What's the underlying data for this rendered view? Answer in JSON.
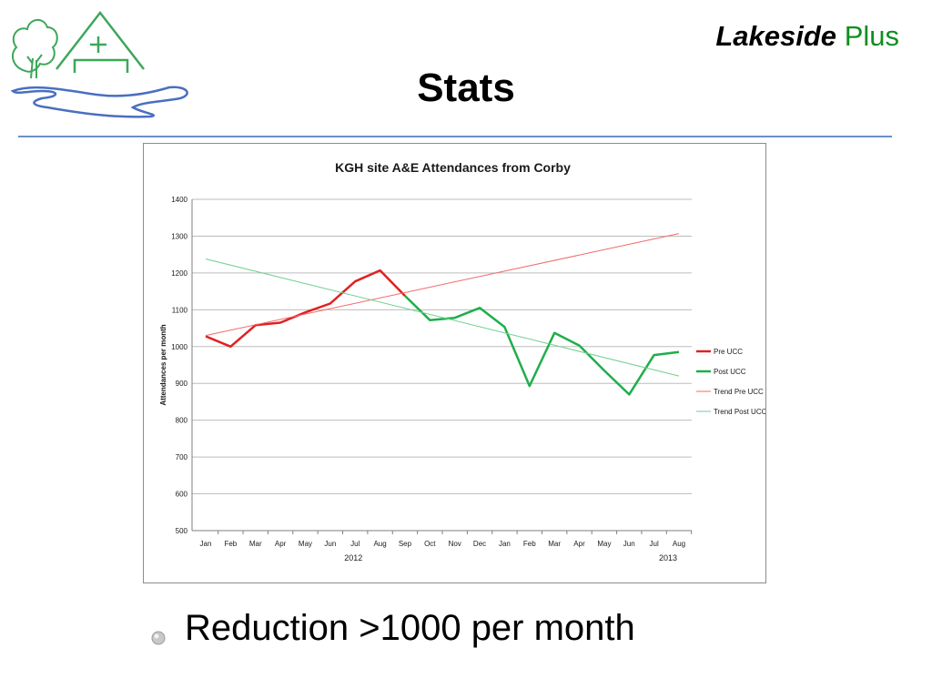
{
  "header": {
    "brand_primary": "Lakeside",
    "brand_secondary": "Plus",
    "title": "Stats",
    "colors": {
      "brand_green": "#0f8f1f",
      "rule_blue": "#6a8fc8",
      "logo_green": "#3da75a",
      "logo_blue": "#4a6fc0"
    }
  },
  "logo": {
    "icon": "lakeside-house-tree-logo"
  },
  "bullet": {
    "icon": "bullet-disc-icon",
    "text": "Reduction >1000 per month"
  },
  "chart_data": {
    "type": "line",
    "title": "KGH site A&E Attendances from Corby",
    "xlabel": "",
    "ylabel": "Attendances per month",
    "ylim": [
      500,
      1400
    ],
    "yticks": [
      500,
      600,
      700,
      800,
      900,
      1000,
      1100,
      1200,
      1300,
      1400
    ],
    "grid": true,
    "legend_position": "right",
    "categories": [
      "Jan",
      "Feb",
      "Mar",
      "Apr",
      "May",
      "Jun",
      "Jul",
      "Aug",
      "Sep",
      "Oct",
      "Nov",
      "Dec",
      "Jan",
      "Feb",
      "Mar",
      "Apr",
      "May",
      "Jun",
      "Jul",
      "Aug"
    ],
    "year_labels": [
      {
        "label": "2012",
        "category_index": 6
      },
      {
        "label": "2013",
        "category_index": 19
      }
    ],
    "series": [
      {
        "name": "Pre UCC",
        "kind": "line",
        "color": "#e02020",
        "values": [
          1028,
          1000,
          1058,
          1065,
          1093,
          1117,
          1177,
          1207,
          1138,
          null,
          null,
          null,
          null,
          null,
          null,
          null,
          null,
          null,
          null,
          null
        ]
      },
      {
        "name": "Post UCC",
        "kind": "line",
        "color": "#1fae4b",
        "values": [
          null,
          null,
          null,
          null,
          null,
          null,
          null,
          null,
          1138,
          1072,
          1078,
          1105,
          1053,
          893,
          1037,
          1003,
          935,
          870,
          977,
          985
        ]
      },
      {
        "name": "Trend Pre UCC",
        "kind": "trend",
        "color": "#f06a6a",
        "start": 1030,
        "end": 1307
      },
      {
        "name": "Trend Post UCC",
        "kind": "trend",
        "color": "#6fd08f",
        "start": 1238,
        "end": 920
      }
    ]
  }
}
